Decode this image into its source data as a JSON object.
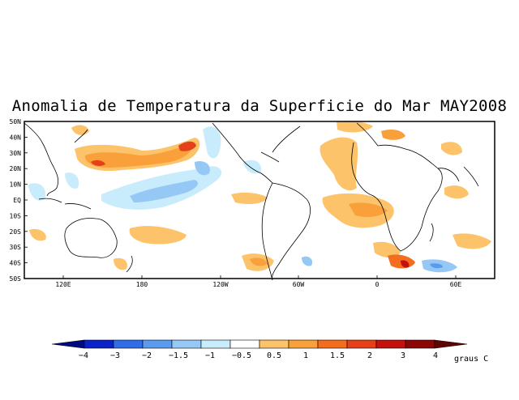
{
  "title": "Anomalia de Temperatura da Superficie do Mar MAY2008",
  "map": {
    "lat_labels": [
      "50N",
      "40N",
      "30N",
      "20N",
      "10N",
      "EQ",
      "10S",
      "20S",
      "30S",
      "40S",
      "50S"
    ],
    "lon_labels": [
      "120E",
      "180",
      "120W",
      "60W",
      "0",
      "60E"
    ]
  },
  "legend": {
    "unit": "graus C",
    "tick_labels": [
      "-4",
      "-3",
      "-2",
      "-1.5",
      "-1",
      "-0.5",
      "0.5",
      "1",
      "1.5",
      "2",
      "3",
      "4"
    ],
    "colors": [
      "#000a80",
      "#0a22c8",
      "#2f6ee6",
      "#5a9bef",
      "#96c8f5",
      "#c8ecfb",
      "#ffffff",
      "#fcc36a",
      "#f9a03a",
      "#f46d1e",
      "#e5401a",
      "#c4110e",
      "#8c0606",
      "#600303"
    ]
  },
  "colors": {
    "land": "#ffffff",
    "ocean": "#ffffff",
    "coast": "#000000"
  }
}
